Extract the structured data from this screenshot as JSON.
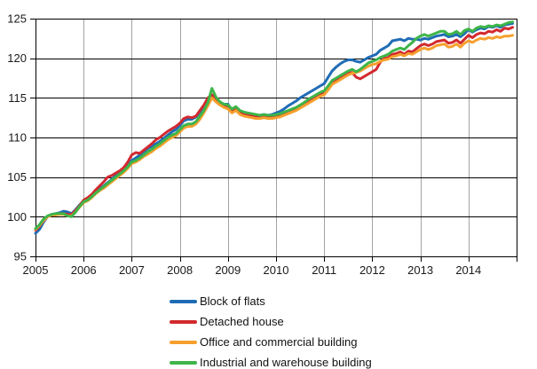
{
  "chart_data": {
    "type": "line",
    "title": "",
    "xlabel": "",
    "ylabel": "",
    "x_unit": "month",
    "x_start_label": "2005",
    "x_tick_labels": [
      "2005",
      "2006",
      "2007",
      "2008",
      "2009",
      "2010",
      "2011",
      "2012",
      "2013",
      "2014"
    ],
    "y_tick_labels": [
      "95",
      "100",
      "105",
      "110",
      "115",
      "120",
      "125"
    ],
    "y_ticks": [
      95,
      100,
      105,
      110,
      115,
      120,
      125
    ],
    "ylim": [
      95,
      125
    ],
    "grid": {
      "horizontal_color": "#000000",
      "vertical_color": "#a3a3a3",
      "frame_color": "#000000"
    },
    "legend_position": "bottom",
    "series": [
      {
        "name": "Block of flats",
        "color": "#1f6cb5",
        "values": [
          97.9,
          98.4,
          99.3,
          100.0,
          100.3,
          100.4,
          100.5,
          100.7,
          100.6,
          100.4,
          100.9,
          101.5,
          102.0,
          102.2,
          102.6,
          103.1,
          103.5,
          103.9,
          104.3,
          104.7,
          105.2,
          105.6,
          106.0,
          106.5,
          107.1,
          107.4,
          107.8,
          108.2,
          108.6,
          108.9,
          109.2,
          109.5,
          109.9,
          110.3,
          110.7,
          111.0,
          111.5,
          112.1,
          112.3,
          112.3,
          112.6,
          113.2,
          113.9,
          114.7,
          115.3,
          114.8,
          114.4,
          114.2,
          114.2,
          113.5,
          113.8,
          113.3,
          113.1,
          113.0,
          112.9,
          112.8,
          112.8,
          112.9,
          112.8,
          112.9,
          113.1,
          113.3,
          113.6,
          114.0,
          114.3,
          114.6,
          115.0,
          115.3,
          115.6,
          115.9,
          116.2,
          116.5,
          116.8,
          117.6,
          118.4,
          118.9,
          119.3,
          119.6,
          119.8,
          119.8,
          119.6,
          119.5,
          119.8,
          120.1,
          120.3,
          120.5,
          121.0,
          121.3,
          121.6,
          122.2,
          122.3,
          122.4,
          122.2,
          122.5,
          122.4,
          122.4,
          122.3,
          122.5,
          122.4,
          122.6,
          122.8,
          122.9,
          123.0,
          122.7,
          122.8,
          123.0,
          122.7,
          123.1,
          123.6,
          123.3,
          123.6,
          123.8,
          123.7,
          124.0,
          123.9,
          124.1,
          123.9,
          124.2,
          124.3,
          124.4
        ]
      },
      {
        "name": "Detached house",
        "color": "#d2292e",
        "values": [
          98.3,
          98.8,
          99.5,
          100.0,
          100.2,
          100.3,
          100.4,
          100.4,
          100.3,
          100.3,
          100.8,
          101.4,
          102.1,
          102.4,
          102.8,
          103.4,
          103.9,
          104.4,
          105.0,
          105.2,
          105.5,
          105.8,
          106.2,
          106.9,
          107.8,
          108.1,
          108.0,
          108.4,
          108.8,
          109.2,
          109.7,
          110.0,
          110.4,
          110.8,
          111.1,
          111.4,
          111.8,
          112.4,
          112.6,
          112.5,
          112.7,
          113.4,
          114.1,
          115.0,
          115.4,
          114.7,
          114.2,
          113.9,
          113.8,
          113.3,
          113.6,
          113.1,
          112.9,
          112.8,
          112.7,
          112.6,
          112.5,
          112.6,
          112.5,
          112.5,
          112.6,
          112.7,
          112.9,
          113.1,
          113.3,
          113.5,
          113.8,
          114.1,
          114.5,
          114.8,
          115.1,
          115.4,
          115.6,
          116.2,
          116.9,
          117.2,
          117.5,
          117.8,
          118.1,
          118.2,
          117.6,
          117.4,
          117.7,
          118.0,
          118.3,
          118.6,
          119.5,
          120.0,
          120.1,
          120.5,
          120.6,
          120.8,
          120.5,
          120.9,
          120.8,
          121.2,
          121.6,
          121.8,
          121.6,
          121.8,
          122.1,
          122.2,
          122.3,
          121.9,
          122.0,
          122.3,
          121.9,
          122.4,
          122.9,
          122.6,
          123.0,
          123.2,
          123.1,
          123.4,
          123.3,
          123.6,
          123.4,
          123.8,
          123.7,
          123.9
        ]
      },
      {
        "name": "Office and commercial building",
        "color": "#f6a02e",
        "values": [
          98.4,
          98.9,
          99.5,
          100.0,
          100.2,
          100.2,
          100.3,
          100.3,
          100.1,
          100.1,
          100.6,
          101.2,
          101.8,
          102.0,
          102.4,
          102.9,
          103.3,
          103.6,
          104.0,
          104.4,
          104.8,
          105.2,
          105.6,
          106.1,
          106.7,
          106.9,
          107.2,
          107.6,
          107.9,
          108.2,
          108.6,
          108.9,
          109.3,
          109.7,
          110.0,
          110.2,
          110.7,
          111.2,
          111.4,
          111.4,
          111.7,
          112.3,
          113.1,
          114.0,
          115.0,
          114.5,
          114.1,
          113.8,
          113.6,
          113.1,
          113.4,
          112.9,
          112.7,
          112.6,
          112.5,
          112.4,
          112.4,
          112.5,
          112.4,
          112.4,
          112.5,
          112.6,
          112.8,
          113.0,
          113.2,
          113.4,
          113.7,
          114.0,
          114.3,
          114.6,
          114.9,
          115.2,
          115.4,
          116.0,
          116.7,
          117.0,
          117.3,
          117.6,
          117.9,
          118.1,
          118.2,
          118.4,
          118.7,
          119.0,
          119.2,
          119.3,
          119.6,
          119.8,
          119.9,
          120.2,
          120.3,
          120.5,
          120.3,
          120.6,
          120.5,
          120.8,
          121.1,
          121.3,
          121.1,
          121.3,
          121.6,
          121.7,
          121.8,
          121.4,
          121.5,
          121.8,
          121.4,
          121.9,
          122.2,
          122.0,
          122.3,
          122.5,
          122.4,
          122.6,
          122.5,
          122.7,
          122.6,
          122.8,
          122.8,
          122.9
        ]
      },
      {
        "name": "Industrial and warehouse building",
        "color": "#3eb549",
        "values": [
          98.5,
          99.0,
          99.7,
          100.1,
          100.3,
          100.4,
          100.4,
          100.4,
          100.1,
          100.0,
          100.6,
          101.3,
          101.9,
          102.1,
          102.5,
          103.0,
          103.4,
          103.8,
          104.2,
          104.6,
          105.0,
          105.4,
          105.8,
          106.3,
          106.9,
          107.1,
          107.4,
          107.8,
          108.2,
          108.5,
          108.9,
          109.2,
          109.6,
          110.0,
          110.3,
          110.5,
          111.0,
          111.5,
          111.7,
          111.7,
          112.0,
          112.7,
          113.4,
          114.4,
          116.2,
          115.1,
          114.5,
          114.2,
          114.1,
          113.6,
          113.9,
          113.4,
          113.2,
          113.1,
          113.0,
          112.9,
          112.8,
          112.9,
          112.8,
          112.8,
          112.9,
          113.0,
          113.2,
          113.4,
          113.6,
          113.8,
          114.1,
          114.4,
          114.8,
          115.1,
          115.4,
          115.7,
          115.9,
          116.5,
          117.2,
          117.5,
          117.8,
          118.1,
          118.4,
          118.6,
          118.3,
          118.6,
          119.0,
          119.4,
          119.6,
          119.8,
          120.1,
          120.3,
          120.5,
          120.9,
          121.1,
          121.3,
          121.1,
          121.6,
          122.0,
          122.5,
          122.8,
          123.0,
          122.8,
          123.0,
          123.2,
          123.4,
          123.4,
          123.0,
          123.1,
          123.4,
          123.0,
          123.5,
          123.7,
          123.4,
          123.8,
          124.0,
          123.9,
          124.1,
          124.0,
          124.2,
          124.1,
          124.3,
          124.5,
          124.6
        ]
      }
    ]
  }
}
